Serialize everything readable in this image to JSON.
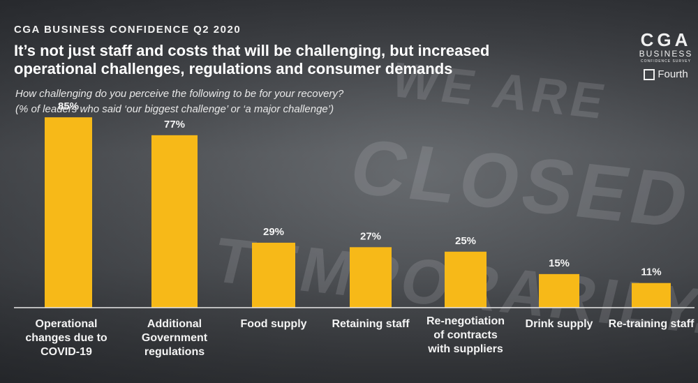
{
  "kicker": "CGA BUSINESS CONFIDENCE Q2 2020",
  "title_line1": "It’s not just staff and costs that will be challenging, but increased",
  "title_line2": "operational challenges, regulations and consumer demands",
  "question_line1": "How challenging do you perceive the following to be for your recovery?",
  "question_line2": "(% of leaders who said ‘our biggest challenge’ or ‘a major challenge’)",
  "logo": {
    "cga": "CGA",
    "business": "BUSINESS",
    "survey": "CONFIDENCE SURVEY",
    "partner": "Fourth"
  },
  "background_text": {
    "w1": "WE ARE",
    "w2": "CLOSED",
    "w3": "TEMPORARILY."
  },
  "chart_data": {
    "type": "bar",
    "categories": [
      "Operational changes due to COVID-19",
      "Additional Government regulations",
      "Food supply",
      "Retaining staff",
      "Re-negotiation of contracts with suppliers",
      "Drink supply",
      "Re-training staff"
    ],
    "values": [
      85,
      77,
      29,
      27,
      25,
      15,
      11
    ],
    "value_labels": [
      "85%",
      "77%",
      "29%",
      "27%",
      "25%",
      "15%",
      "11%"
    ],
    "bar_color": "#f7b918",
    "ylim": [
      0,
      100
    ],
    "grid": false,
    "legend": "none"
  }
}
